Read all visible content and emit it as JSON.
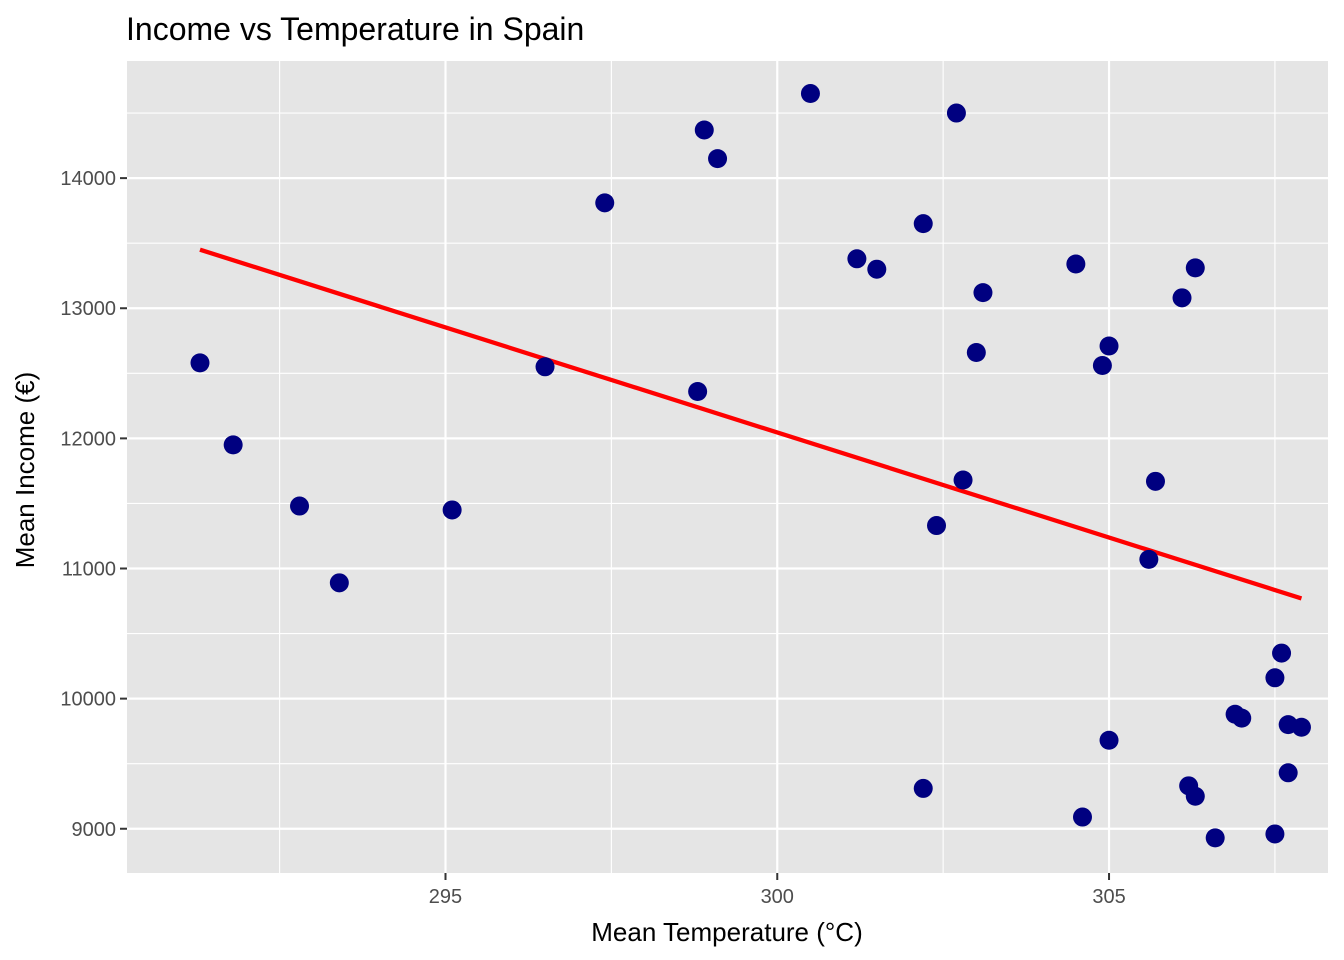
{
  "chart_data": {
    "type": "scatter",
    "title": "Income vs Temperature in Spain",
    "xlabel": "Mean Temperature (°C)",
    "ylabel": "Mean Income (€)",
    "xlim": [
      290.2,
      308.3
    ],
    "ylim": [
      8660,
      14900
    ],
    "xticks": [
      295,
      300,
      305
    ],
    "yticks": [
      9000,
      10000,
      11000,
      12000,
      13000,
      14000
    ],
    "grid": true,
    "background": "#e5e5e5",
    "point_color": "#000080",
    "trend_color": "#ff0000",
    "points": [
      {
        "x": 291.3,
        "y": 12580
      },
      {
        "x": 291.8,
        "y": 11950
      },
      {
        "x": 292.8,
        "y": 11480
      },
      {
        "x": 293.4,
        "y": 10890
      },
      {
        "x": 295.1,
        "y": 11450
      },
      {
        "x": 296.5,
        "y": 12550
      },
      {
        "x": 297.4,
        "y": 13810
      },
      {
        "x": 298.8,
        "y": 12360
      },
      {
        "x": 298.9,
        "y": 14370
      },
      {
        "x": 299.1,
        "y": 14150
      },
      {
        "x": 300.5,
        "y": 14650
      },
      {
        "x": 301.2,
        "y": 13380
      },
      {
        "x": 301.5,
        "y": 13300
      },
      {
        "x": 302.2,
        "y": 13650
      },
      {
        "x": 302.2,
        "y": 9310
      },
      {
        "x": 302.4,
        "y": 11330
      },
      {
        "x": 302.7,
        "y": 14500
      },
      {
        "x": 302.8,
        "y": 11680
      },
      {
        "x": 303.0,
        "y": 12660
      },
      {
        "x": 303.1,
        "y": 13120
      },
      {
        "x": 304.5,
        "y": 13340
      },
      {
        "x": 304.6,
        "y": 9090
      },
      {
        "x": 304.9,
        "y": 12560
      },
      {
        "x": 305.0,
        "y": 12710
      },
      {
        "x": 305.0,
        "y": 9680
      },
      {
        "x": 305.6,
        "y": 11070
      },
      {
        "x": 305.7,
        "y": 11670
      },
      {
        "x": 306.1,
        "y": 13080
      },
      {
        "x": 306.2,
        "y": 9330
      },
      {
        "x": 306.3,
        "y": 9250
      },
      {
        "x": 306.3,
        "y": 13310
      },
      {
        "x": 306.6,
        "y": 8930
      },
      {
        "x": 306.9,
        "y": 9880
      },
      {
        "x": 307.0,
        "y": 9850
      },
      {
        "x": 307.5,
        "y": 10160
      },
      {
        "x": 307.5,
        "y": 8960
      },
      {
        "x": 307.6,
        "y": 10350
      },
      {
        "x": 307.7,
        "y": 9800
      },
      {
        "x": 307.7,
        "y": 9430
      },
      {
        "x": 307.9,
        "y": 9780
      }
    ],
    "trend_line": [
      {
        "x": 291.3,
        "y": 13450
      },
      {
        "x": 307.9,
        "y": 10770
      }
    ]
  }
}
